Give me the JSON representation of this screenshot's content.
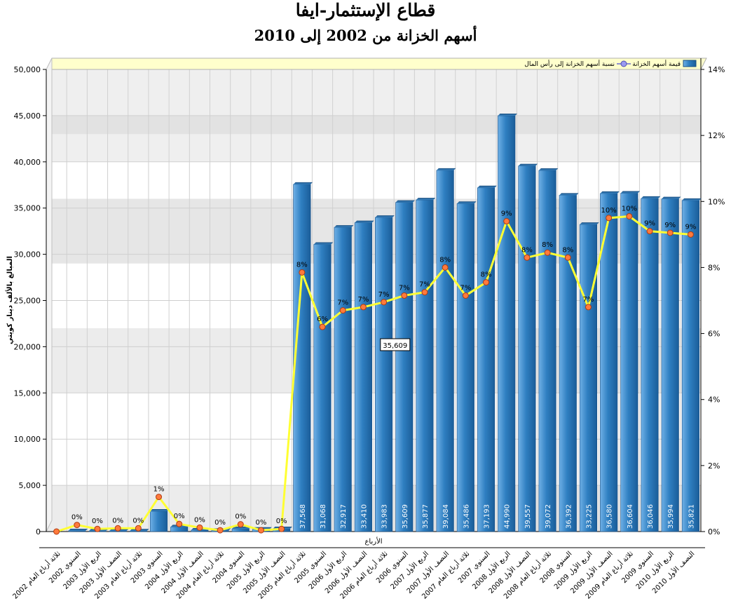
{
  "chart_data": {
    "type": "bar",
    "title": "قطاع الإستثمار-ايفا",
    "subtitle": "أسهم الخزانة من 2002 إلى 2010",
    "xlabel": "الأرباع",
    "ylabel": "المبالغ بالألف دينار كويتي",
    "ylim": [
      0,
      50000
    ],
    "y2lim": [
      0,
      14
    ],
    "yticks": [
      "0",
      "5,000",
      "10,000",
      "15,000",
      "20,000",
      "25,000",
      "30,000",
      "35,000",
      "40,000",
      "45,000",
      "50,000"
    ],
    "y2ticks": [
      "0%",
      "2%",
      "4%",
      "6%",
      "8%",
      "10%",
      "12%",
      "14%"
    ],
    "categories": [
      "ثلاثة أرباع العام 2002",
      "السنوي 2002",
      "الربع الأول 2003",
      "النصف الأول 2003",
      "ثلاثة أرباع العام 2003",
      "السنوي 2003",
      "الربع الأول 2004",
      "النصف الأول 2004",
      "ثلاثة أرباع العام 2004",
      "السنوي 2004",
      "الربع الأول 2005",
      "النصف الأول 2005",
      "ثلاثة أرباع العام 2005",
      "السنوي 2005",
      "الربع الأول 2006",
      "النصف الأول 2006",
      "ثلاثة أرباع العام 2006",
      "السنوي 2006",
      "الربع الأول 2007",
      "النصف الأول 2007",
      "ثلاثة أرباع العام 2007",
      "السنوي 2007",
      "الربع الأول 2008",
      "النصف الأول 2008",
      "ثلاثة أرباع العام 2008",
      "السنوي 2008",
      "الربع الأول 2009",
      "النصف الأول 2009",
      "ثلاثة أرباع العام 2009",
      "السنوي 2009",
      "الربع الأول 2010",
      "النصف الأول 2010"
    ],
    "series": [
      {
        "name": "قيمة أسهم الخزانة",
        "type": "bar",
        "color": "#2f7fc1",
        "values": [
          0,
          80,
          50,
          60,
          60,
          2200,
          500,
          150,
          120,
          300,
          250,
          300,
          37568,
          31068,
          32917,
          33410,
          33983,
          35609,
          35877,
          39084,
          35486,
          37193,
          44990,
          39557,
          39072,
          36392,
          33225,
          36580,
          36604,
          36046,
          35994,
          35821
        ],
        "labels": [
          "",
          "",
          "",
          "",
          "",
          "",
          "",
          "",
          "",
          "",
          "",
          "",
          "37,568",
          "31,068",
          "32,917",
          "33,410",
          "33,983",
          "35,609",
          "35,877",
          "39,084",
          "35,486",
          "37,193",
          "44,990",
          "39,557",
          "39,072",
          "36,392",
          "33,225",
          "36,580",
          "36,604",
          "36,046",
          "35,994",
          "35,821"
        ]
      },
      {
        "name": "نسبة أسهم الخزانة إلى رأس المال",
        "type": "line",
        "color": "#ffff33",
        "values": [
          0,
          0.2,
          0.08,
          0.1,
          0.1,
          1.05,
          0.23,
          0.12,
          0.04,
          0.22,
          0.04,
          0.08,
          7.85,
          6.2,
          6.7,
          6.8,
          6.95,
          7.15,
          7.25,
          8.0,
          7.15,
          7.55,
          9.4,
          8.3,
          8.45,
          8.3,
          6.8,
          9.5,
          9.55,
          9.1,
          9.05,
          9.0
        ],
        "labels": [
          "",
          "0%",
          "0%",
          "0%",
          "0%",
          "1%",
          "0%",
          "0%",
          "0%",
          "0%",
          "0%",
          "0%",
          "8%",
          "6%",
          "7%",
          "7%",
          "7%",
          "7%",
          "7%",
          "8%",
          "7%",
          "8%",
          "9%",
          "8%",
          "8%",
          "8%",
          "7%",
          "10%",
          "10%",
          "9%",
          "9%",
          "9%"
        ]
      }
    ],
    "tooltip": "35,609",
    "legend_position": "top",
    "grid": true
  }
}
